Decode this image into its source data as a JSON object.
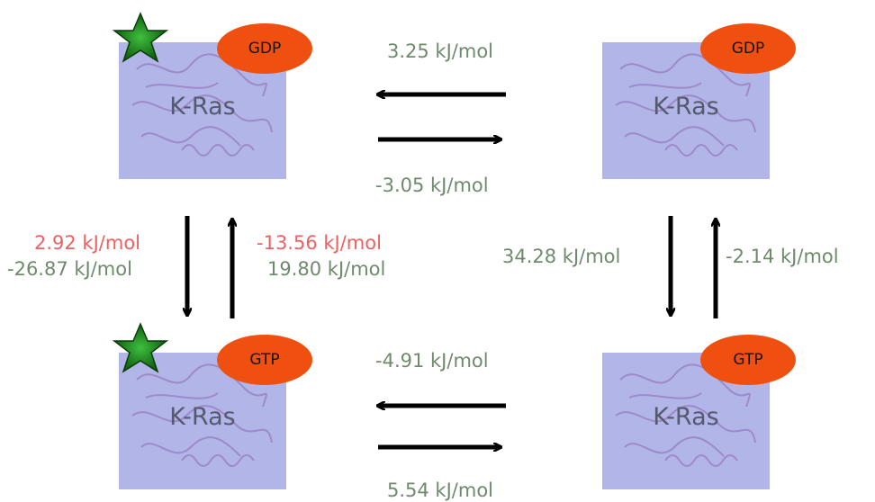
{
  "colors": {
    "box": "#b2b5e8",
    "nucleotide": "#f0500f",
    "star": "#1f8a1f",
    "label_green": "#6f8a6c",
    "label_red": "#ef6060",
    "arrow": "#000000"
  },
  "states": {
    "top_left": {
      "protein": "K-Ras",
      "nucleotide": "GDP"
    },
    "top_right": {
      "protein": "K-Ras",
      "nucleotide": "GDP"
    },
    "bottom_left": {
      "protein": "K-Ras",
      "nucleotide": "GTP"
    },
    "bottom_right": {
      "protein": "K-Ras",
      "nucleotide": "GTP"
    }
  },
  "energies": {
    "top_reverse": "3.25 kJ/mol",
    "top_forward": "-3.05 kJ/mol",
    "left_down_red": "2.92 kJ/mol",
    "left_down_green": "-26.87 kJ/mol",
    "left_up_red": "-13.56 kJ/mol",
    "left_up_green": "19.80 kJ/mol",
    "right_down": "34.28 kJ/mol",
    "right_up": "-2.14 kJ/mol",
    "bottom_reverse": "-4.91 kJ/mol",
    "bottom_forward": "5.54 kJ/mol"
  }
}
